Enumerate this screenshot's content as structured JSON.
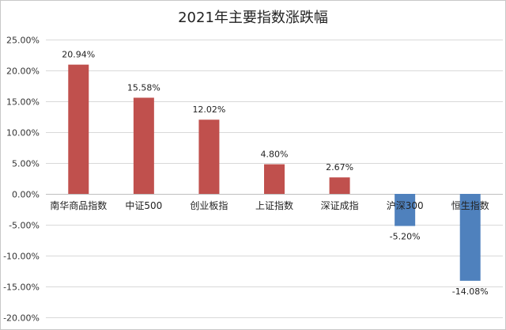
{
  "chart_data": {
    "type": "bar",
    "title": "2021年主要指数涨跌幅",
    "categories": [
      "南华商品指数",
      "中证500",
      "创业板指",
      "上证指数",
      "深证成指",
      "沪深300",
      "恒生指数"
    ],
    "values": [
      20.94,
      15.58,
      12.02,
      4.8,
      2.67,
      -5.2,
      -14.08
    ],
    "data_labels": [
      "20.94%",
      "15.58%",
      "12.02%",
      "4.80%",
      "2.67%",
      "-5.20%",
      "-14.08%"
    ],
    "ylim": [
      -20,
      25
    ],
    "yticks": [
      25,
      20,
      15,
      10,
      5,
      0,
      -5,
      -10,
      -15,
      -20
    ],
    "ytick_labels": [
      "25.00%",
      "20.00%",
      "15.00%",
      "10.00%",
      "5.00%",
      "0.00%",
      "-5.00%",
      "-10.00%",
      "-15.00%",
      "-20.00%"
    ],
    "xlabel": "",
    "ylabel": "",
    "grid": true,
    "legend": "none",
    "colors": {
      "positive": "#c0504d",
      "negative": "#4f81bd"
    }
  }
}
